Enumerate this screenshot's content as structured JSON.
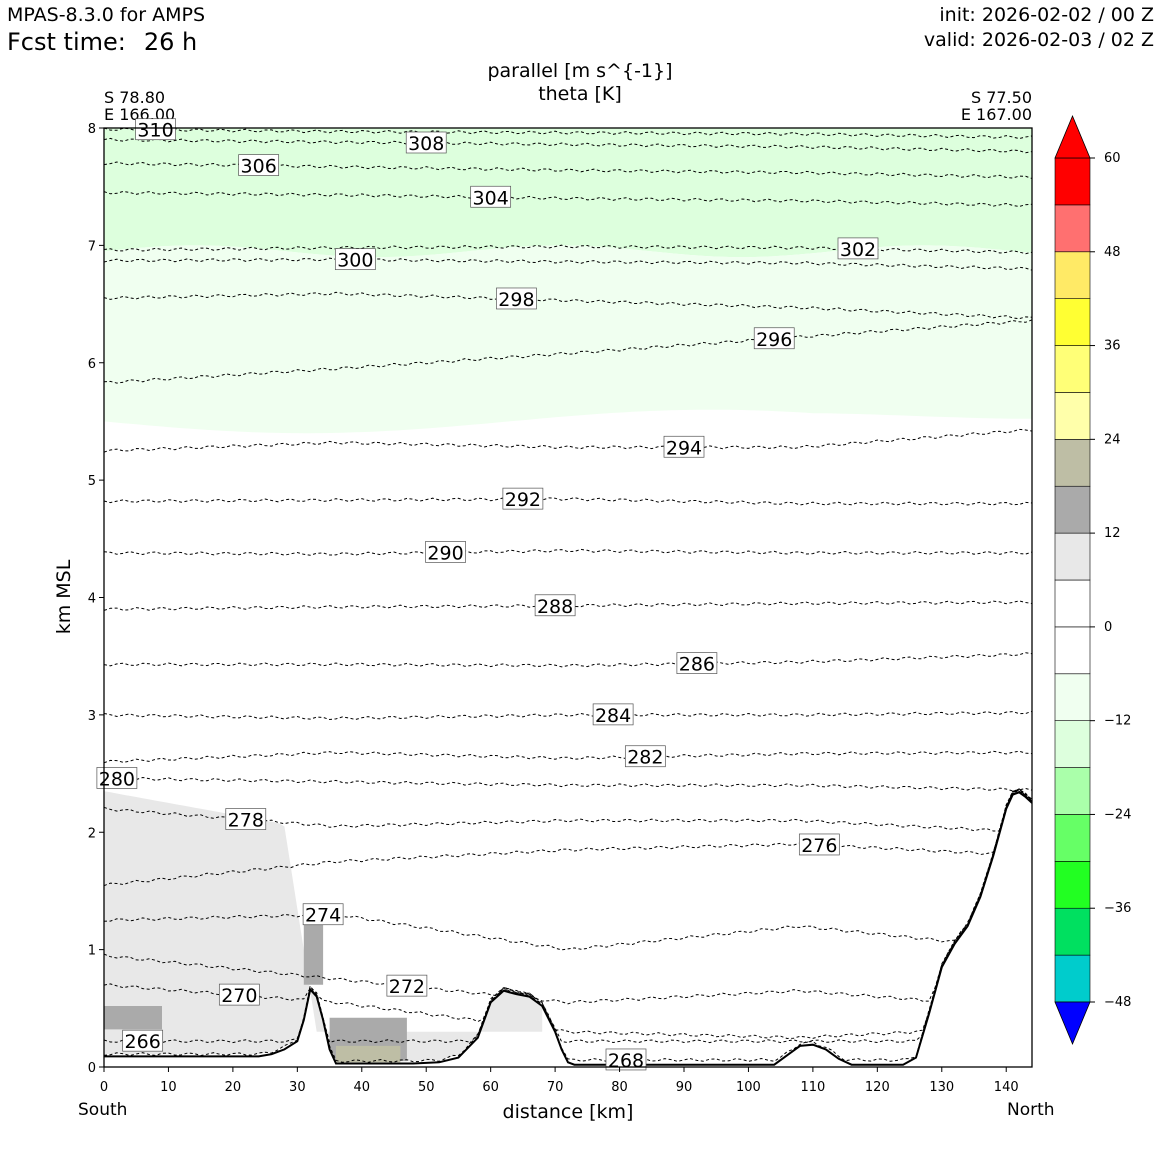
{
  "header": {
    "model": "MPAS-8.3.0 for AMPS",
    "fcst_label": "Fcst time:",
    "fcst_value": "26 h",
    "init": "init: 2026-02-02 / 00 Z",
    "valid": "valid: 2026-02-03 / 02 Z"
  },
  "chart_data": {
    "type": "contour",
    "title": "parallel [m s^{-1}]",
    "subtitle": "theta [K]",
    "xlabel": "distance [km]",
    "ylabel": "km MSL",
    "xlim": [
      0,
      144
    ],
    "ylim": [
      0,
      8
    ],
    "x_ticks": [
      0,
      10,
      20,
      30,
      40,
      50,
      60,
      70,
      80,
      90,
      100,
      110,
      120,
      130,
      140
    ],
    "y_ticks": [
      0,
      1,
      2,
      3,
      4,
      5,
      6,
      7,
      8
    ],
    "endpoints": {
      "left": {
        "lat": "S 78.80",
        "lon": "E 166.00",
        "direction": "South"
      },
      "right": {
        "lat": "S 77.50",
        "lon": "E 167.00",
        "direction": "North"
      }
    },
    "colorbar": {
      "levels": [
        -54,
        -48,
        -42,
        -36,
        -30,
        -24,
        -18,
        -12,
        -6,
        0,
        6,
        12,
        18,
        24,
        30,
        36,
        42,
        48,
        54,
        60
      ],
      "tick_labels": [
        "60",
        "48",
        "36",
        "24",
        "12",
        "0",
        "−12",
        "−24",
        "−36",
        "−48"
      ],
      "tick_values": [
        60,
        48,
        36,
        24,
        12,
        0,
        -12,
        -24,
        -36,
        -48
      ],
      "colors_low_to_high": [
        "#0000ff",
        "#00cccc",
        "#00e060",
        "#22ff22",
        "#66ff66",
        "#aaffaa",
        "#ddffdd",
        "#f0fff0",
        "#ffffff",
        "#ffffff",
        "#e8e8e8",
        "#aaaaaa",
        "#bebea5",
        "#ffffaa",
        "#ffff77",
        "#ffff33",
        "#ffea66",
        "#ff7070",
        "#ff0000"
      ],
      "extend_low_color": "#0000ff",
      "extend_high_color": "#ff0000"
    },
    "shaded_regions": [
      {
        "level": "-12 to -6",
        "color": "#ddffdd",
        "desc": "upper layer"
      },
      {
        "level": "-6 to 0",
        "color": "#f0fff0",
        "desc": "mid-upper layer"
      },
      {
        "level": "6 to 12",
        "color": "#e8e8e8",
        "desc": "low-level southern layer"
      },
      {
        "level": "12 to 18",
        "color": "#aaaaaa",
        "desc": "near-surface pockets"
      },
      {
        "level": "18 to 24",
        "color": "#bebea5",
        "desc": "valley floor pocket"
      }
    ],
    "terrain": [
      [
        0,
        0.09
      ],
      [
        10,
        0.09
      ],
      [
        20,
        0.09
      ],
      [
        24,
        0.09
      ],
      [
        26,
        0.11
      ],
      [
        28,
        0.15
      ],
      [
        30,
        0.22
      ],
      [
        31,
        0.4
      ],
      [
        32,
        0.66
      ],
      [
        33,
        0.6
      ],
      [
        34,
        0.4
      ],
      [
        35,
        0.15
      ],
      [
        36,
        0.03
      ],
      [
        40,
        0.03
      ],
      [
        44,
        0.03
      ],
      [
        46,
        0.03
      ],
      [
        48,
        0.03
      ],
      [
        52,
        0.04
      ],
      [
        55,
        0.08
      ],
      [
        58,
        0.25
      ],
      [
        60,
        0.55
      ],
      [
        62,
        0.65
      ],
      [
        64,
        0.62
      ],
      [
        66,
        0.6
      ],
      [
        68,
        0.52
      ],
      [
        70,
        0.3
      ],
      [
        71,
        0.15
      ],
      [
        72,
        0.04
      ],
      [
        73,
        0.02
      ],
      [
        80,
        0.02
      ],
      [
        90,
        0.02
      ],
      [
        100,
        0.02
      ],
      [
        104,
        0.02
      ],
      [
        106,
        0.1
      ],
      [
        108,
        0.18
      ],
      [
        110,
        0.19
      ],
      [
        112,
        0.15
      ],
      [
        114,
        0.07
      ],
      [
        116,
        0.02
      ],
      [
        120,
        0.02
      ],
      [
        124,
        0.02
      ],
      [
        126,
        0.08
      ],
      [
        128,
        0.45
      ],
      [
        130,
        0.85
      ],
      [
        132,
        1.05
      ],
      [
        134,
        1.2
      ],
      [
        136,
        1.45
      ],
      [
        138,
        1.8
      ],
      [
        140,
        2.2
      ],
      [
        141,
        2.32
      ],
      [
        142,
        2.34
      ],
      [
        143,
        2.3
      ],
      [
        144,
        2.25
      ]
    ],
    "theta_contours": [
      {
        "level": 310,
        "label_x": 8,
        "y": [
          7.99,
          7.97,
          7.96,
          7.95,
          7.92
        ]
      },
      {
        "level": 308,
        "label_x": 50,
        "y": [
          7.9,
          7.88,
          7.86,
          7.84,
          7.8
        ]
      },
      {
        "level": 306,
        "label_x": 24,
        "y": [
          7.7,
          7.67,
          7.64,
          7.62,
          7.58
        ]
      },
      {
        "level": 304,
        "label_x": 60,
        "y": [
          7.45,
          7.43,
          7.4,
          7.38,
          7.34
        ]
      },
      {
        "level": 302,
        "label_x": 117,
        "y": [
          6.96,
          6.98,
          6.99,
          6.98,
          6.94
        ]
      },
      {
        "level": 300,
        "label_x": 39,
        "y": [
          6.87,
          6.88,
          6.86,
          6.85,
          6.8
        ]
      },
      {
        "level": 298,
        "label_x": 64,
        "y": [
          6.55,
          6.59,
          6.53,
          6.47,
          6.38
        ]
      },
      {
        "level": 296,
        "label_x": 104,
        "y": [
          5.83,
          5.95,
          6.08,
          6.22,
          6.36
        ]
      },
      {
        "level": 294,
        "label_x": 90,
        "y": [
          5.25,
          5.32,
          5.28,
          5.28,
          5.43
        ]
      },
      {
        "level": 292,
        "label_x": 65,
        "y": [
          4.82,
          4.83,
          4.84,
          4.8,
          4.8
        ]
      },
      {
        "level": 290,
        "label_x": 53,
        "y": [
          4.38,
          4.37,
          4.4,
          4.38,
          4.38
        ]
      },
      {
        "level": 288,
        "label_x": 70,
        "y": [
          3.9,
          3.92,
          3.93,
          3.95,
          3.96
        ]
      },
      {
        "level": 286,
        "label_x": 92,
        "y": [
          3.43,
          3.43,
          3.42,
          3.45,
          3.52
        ]
      },
      {
        "level": 284,
        "label_x": 79,
        "y": [
          3.0,
          2.97,
          3.0,
          3.0,
          3.02
        ]
      },
      {
        "level": 282,
        "label_x": 84,
        "y": [
          2.6,
          2.68,
          2.63,
          2.67,
          2.68
        ]
      },
      {
        "level": 280,
        "label_x": 2,
        "y": [
          2.46,
          2.43,
          2.4,
          2.4,
          2.36
        ]
      },
      {
        "level": 278,
        "label_x": 22,
        "y": [
          2.2,
          2.05,
          2.1,
          2.1,
          2.0
        ]
      },
      {
        "level": 276,
        "label_x": 111,
        "y": [
          1.55,
          1.75,
          1.85,
          1.9,
          1.8
        ]
      },
      {
        "level": 274,
        "label_x": 34,
        "y": [
          1.25,
          1.3,
          1.0,
          1.2,
          1.0
        ]
      },
      {
        "level": 272,
        "label_x": 47,
        "y": [
          0.95,
          0.75,
          0.55,
          0.65,
          0.5
        ]
      },
      {
        "level": 270,
        "label_x": 21,
        "y": [
          0.7,
          0.55,
          0.3,
          0.25,
          0.35
        ]
      },
      {
        "level": 268,
        "label_x": 81,
        "y": [
          0.05,
          0.05,
          0.06,
          0.06,
          0.06
        ]
      },
      {
        "level": 266,
        "label_x": 6,
        "y": [
          0.22,
          0.22,
          0.22,
          0.22,
          0.22
        ]
      }
    ]
  }
}
